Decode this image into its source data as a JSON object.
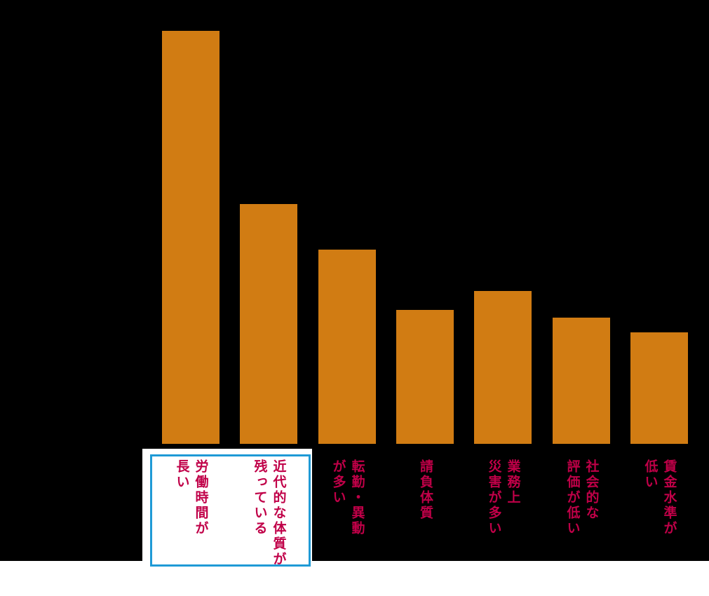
{
  "page": {
    "background_color": "#ffffff",
    "chart_background_color": "#000000"
  },
  "highlight_box": {
    "border_color": "#1f9ad6",
    "fill_color": "#ffffff",
    "boxed_categories": [
      "労働時間が長い",
      "近代的な体質が残っている"
    ]
  },
  "chart_data": {
    "type": "bar",
    "orientation": "vertical",
    "title": "",
    "xlabel": "",
    "ylabel": "",
    "axes_visible": false,
    "gridlines": false,
    "legend": null,
    "bar_color": "#d17c13",
    "label_color": "#c00048",
    "categories": [
      "労働時間が長い",
      "近代的な体質が残っている",
      "転勤・異動が多い",
      "請負体質",
      "業務上災害が多い",
      "社会的な評価が低い",
      "賃金水準が低い"
    ],
    "category_lines": [
      [
        "労働時間が",
        "長い"
      ],
      [
        "近代的な体質が",
        "残っている"
      ],
      [
        "転勤・異動",
        "が多い"
      ],
      [
        "請負体質"
      ],
      [
        "業務上",
        "災害が多い"
      ],
      [
        "社会的な",
        "評価が低い"
      ],
      [
        "賃金水準が",
        "低い"
      ]
    ],
    "values": [
      100,
      58,
      47,
      32.5,
      37,
      30.5,
      27
    ],
    "value_scale_note": "no numeric axis shown in image; values are bar heights relative to tallest bar = 100"
  }
}
